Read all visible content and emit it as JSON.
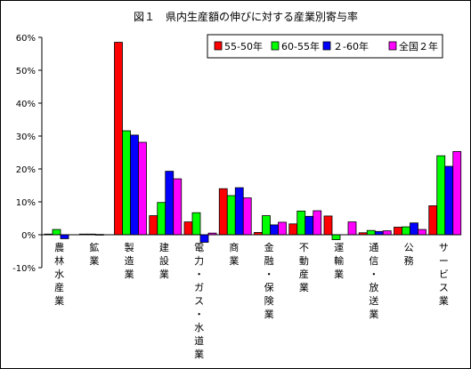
{
  "chart_data": {
    "type": "bar",
    "title": "図１　県内生産額の伸びに対する産業別寄与率",
    "categories": [
      "農林水産業",
      "鉱業",
      "製造業",
      "建設業",
      "電力・ガス・水道業",
      "商業",
      "金融・保険業",
      "不動産業",
      "運輸業",
      "通信・放送業",
      "公務",
      "サービス業"
    ],
    "series": [
      {
        "name": "55-50年",
        "color": "#ff0000",
        "values": [
          0.2,
          0.2,
          58.5,
          5.8,
          3.9,
          14.0,
          0.7,
          3.3,
          5.7,
          0.6,
          2.3,
          8.8
        ]
      },
      {
        "name": "60-55年",
        "color": "#00ff00",
        "values": [
          1.6,
          0.2,
          31.6,
          9.8,
          6.7,
          11.9,
          5.8,
          7.2,
          -1.5,
          1.3,
          2.4,
          24.0
        ]
      },
      {
        "name": "２-60年",
        "color": "#0000ff",
        "values": [
          -1.2,
          0.1,
          30.3,
          19.3,
          -2.3,
          14.3,
          3.0,
          5.6,
          0.0,
          1.0,
          3.6,
          20.8
        ]
      },
      {
        "name": "全国２年",
        "color": "#ff00ff",
        "values": [
          0.0,
          0.0,
          28.1,
          17.0,
          0.5,
          11.2,
          3.8,
          7.3,
          3.9,
          1.2,
          1.6,
          25.3
        ]
      }
    ],
    "y_ticks": [
      "60%",
      "50%",
      "40%",
      "30%",
      "20%",
      "10%",
      "0%",
      "-10%"
    ],
    "ylim": [
      -10,
      60
    ],
    "legend_position": "top-right",
    "grid": false
  }
}
